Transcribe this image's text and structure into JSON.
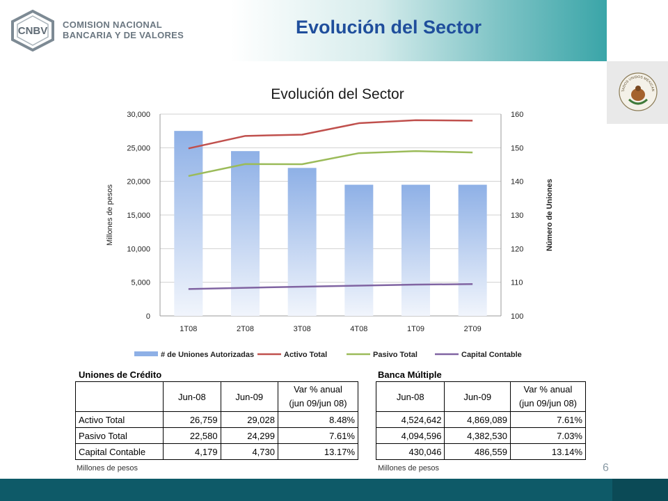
{
  "header": {
    "logo_abbr": "CNBV",
    "logo_line1": "COMISION NACIONAL",
    "logo_line2": "BANCARIA Y DE VALORES",
    "title": "Evolución del Sector",
    "seal_text": "ESTADOS UNIDOS MEXICANOS"
  },
  "colors": {
    "bars": "#8eb0e6",
    "activo": "#c0504d",
    "pasivo": "#9bbb59",
    "capital": "#8064a2",
    "footer": "#0e5a68"
  },
  "chart_data": {
    "type": "bar",
    "title": "Evolución del Sector",
    "categories": [
      "1T08",
      "2T08",
      "3T08",
      "4T08",
      "1T09",
      "2T09"
    ],
    "ylabel": "Millones de pesos",
    "y2label": "Número de Uniones",
    "ylim": [
      0,
      30000
    ],
    "y2lim": [
      100,
      160
    ],
    "yticks": [
      "0",
      "5,000",
      "10,000",
      "15,000",
      "20,000",
      "25,000",
      "30,000"
    ],
    "y2ticks": [
      "100",
      "110",
      "120",
      "130",
      "140",
      "150",
      "160"
    ],
    "grid": true,
    "legend": "bottom",
    "series": [
      {
        "name": "# de Uniones Autorizadas",
        "type": "bar",
        "axis": "right",
        "values": [
          155,
          149,
          144,
          139,
          139,
          139
        ]
      },
      {
        "name": "Activo Total",
        "type": "line",
        "axis": "left",
        "values": [
          24900,
          26759,
          26950,
          28650,
          29100,
          29028
        ]
      },
      {
        "name": "Pasivo Total",
        "type": "line",
        "axis": "left",
        "values": [
          20800,
          22580,
          22550,
          24200,
          24500,
          24299
        ]
      },
      {
        "name": "Capital Contable",
        "type": "line",
        "axis": "left",
        "values": [
          4000,
          4179,
          4350,
          4500,
          4650,
          4730
        ]
      }
    ]
  },
  "uniones": {
    "title": "Uniones de Crédito",
    "headers": [
      "Jun-08",
      "Jun-09",
      "Var % anual",
      "(jun 09/jun 08)"
    ],
    "rows": [
      {
        "label": "Activo Total",
        "jun08": "26,759",
        "jun09": "29,028",
        "var": "8.48%"
      },
      {
        "label": "Pasivo Total",
        "jun08": "22,580",
        "jun09": "24,299",
        "var": "7.61%"
      },
      {
        "label": "Capital Contable",
        "jun08": "4,179",
        "jun09": "4,730",
        "var": "13.17%"
      }
    ],
    "note": "Millones de pesos"
  },
  "banca": {
    "title": "Banca Múltiple",
    "headers": [
      "Jun-08",
      "Jun-09",
      "Var % anual",
      "(jun 09/jun 08)"
    ],
    "rows": [
      {
        "jun08": "4,524,642",
        "jun09": "4,869,089",
        "var": "7.61%"
      },
      {
        "jun08": "4,094,596",
        "jun09": "4,382,530",
        "var": "7.03%"
      },
      {
        "jun08": "430,046",
        "jun09": "486,559",
        "var": "13.14%"
      }
    ],
    "note": "Millones de pesos"
  },
  "page_number": "6"
}
